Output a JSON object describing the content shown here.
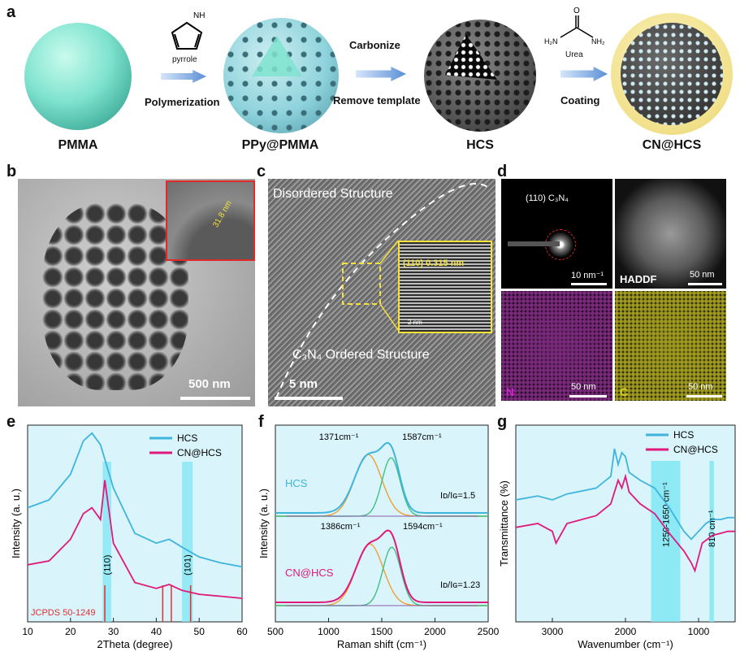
{
  "panel_labels": {
    "a": "a",
    "b": "b",
    "c": "c",
    "d": "d",
    "e": "e",
    "f": "f",
    "g": "g"
  },
  "scheme": {
    "materials": [
      "PMMA",
      "PPy@PMMA",
      "HCS",
      "CN@HCS"
    ],
    "steps": {
      "s1_top": "pyrrole",
      "s1_bottom": "Polymerization",
      "s2_top": "Carbonize",
      "s2_bottom": "Remove template",
      "s3_top": "Urea",
      "s3_bottom": "Coating"
    },
    "molecule_labels": {
      "nh": "NH",
      "h2n": "H₂N",
      "nh2": "NH₂",
      "o": "O"
    }
  },
  "tem_b": {
    "scale": "500 nm",
    "inset_label": "31.8 nm"
  },
  "hrtem_c": {
    "disordered": "Disordered Structure",
    "ordered": "C₃N₄ Ordered Structure",
    "inset": "(110) 0.315 nm",
    "scale": "5 nm",
    "inset_scale": "2 nm"
  },
  "panel_d": {
    "saed_label": "(110) C₃N₄",
    "saed_scale": "10 nm⁻¹",
    "haddf": "HADDF",
    "scale": "50 nm",
    "n": "N",
    "c": "C"
  },
  "chart_data": [
    {
      "type": "line",
      "panel": "e",
      "xlabel": "2Theta (degree)",
      "ylabel": "Intensity (a. u.)",
      "xlim": [
        10,
        60
      ],
      "xticks": [
        10,
        20,
        30,
        40,
        50,
        60
      ],
      "legend": "top-right",
      "colors": {
        "HCS": "#3fb5dd",
        "CN@HCS": "#e0197d",
        "ref": "#e03030",
        "band": "#7fe7f3"
      },
      "series": [
        {
          "name": "HCS",
          "x": [
            10,
            15,
            20,
            23,
            25,
            27,
            30,
            35,
            40,
            43,
            46,
            50,
            55,
            60
          ],
          "y": [
            0.58,
            0.62,
            0.75,
            0.92,
            0.96,
            0.9,
            0.68,
            0.45,
            0.4,
            0.42,
            0.38,
            0.33,
            0.3,
            0.28
          ]
        },
        {
          "name": "CN@HCS",
          "x": [
            10,
            15,
            20,
            23,
            25,
            27,
            28,
            30,
            35,
            40,
            43,
            46,
            50,
            55,
            60
          ],
          "y": [
            0.29,
            0.31,
            0.42,
            0.55,
            0.58,
            0.52,
            0.72,
            0.4,
            0.2,
            0.17,
            0.19,
            0.16,
            0.14,
            0.13,
            0.12
          ]
        }
      ],
      "bands": [
        {
          "from": 27.5,
          "to": 29.5,
          "label": "(110)"
        },
        {
          "from": 46,
          "to": 48.5,
          "label": "(101)"
        }
      ],
      "reference": {
        "name": "JCPDS 50-1249",
        "peaks": [
          28,
          41.5,
          43.5,
          48
        ]
      }
    },
    {
      "type": "line",
      "panel": "f",
      "xlabel": "Raman shift (cm⁻¹)",
      "ylabel": "Intensity (a. u.)",
      "xlim": [
        500,
        2500
      ],
      "xticks": [
        500,
        1000,
        1500,
        2000,
        2500
      ],
      "colors": {
        "HCS": "#3fb5dd",
        "CN@HCS": "#e0197d",
        "D": "#f0a030",
        "G": "#40c080",
        "base": "#8a5ab0"
      },
      "series": [
        {
          "name": "HCS",
          "D": 1371,
          "G": 1587,
          "ratio": "Iᴅ/Iɢ=1.5",
          "d_label": "1371cm⁻¹",
          "g_label": "1587cm⁻¹"
        },
        {
          "name": "CN@HCS",
          "D": 1386,
          "G": 1594,
          "ratio": "Iᴅ/Iɢ=1.23",
          "d_label": "1386cm⁻¹",
          "g_label": "1594cm⁻¹"
        }
      ]
    },
    {
      "type": "line",
      "panel": "g",
      "xlabel": "Wavenumber (cm⁻¹)",
      "ylabel": "Transmittance (%)",
      "xlim": [
        3500,
        500
      ],
      "xticks": [
        3000,
        2000,
        1000
      ],
      "legend": "top-right",
      "colors": {
        "HCS": "#3fb5dd",
        "CN@HCS": "#e0197d",
        "band": "#7fe7f3"
      },
      "series": [
        {
          "name": "HCS",
          "x": [
            3500,
            3200,
            3000,
            2800,
            2400,
            2200,
            2150,
            2100,
            2050,
            2000,
            1950,
            1800,
            1600,
            1400,
            1200,
            1100,
            1000,
            900,
            810,
            700,
            600,
            500
          ],
          "y": [
            0.62,
            0.64,
            0.62,
            0.65,
            0.68,
            0.74,
            0.88,
            0.8,
            0.86,
            0.84,
            0.76,
            0.72,
            0.68,
            0.58,
            0.46,
            0.42,
            0.46,
            0.5,
            0.52,
            0.52,
            0.53,
            0.53
          ]
        },
        {
          "name": "CN@HCS",
          "x": [
            3500,
            3200,
            3000,
            2950,
            2800,
            2400,
            2200,
            2100,
            2050,
            2000,
            1950,
            1800,
            1600,
            1400,
            1200,
            1100,
            1050,
            950,
            810,
            700,
            600,
            500
          ],
          "y": [
            0.48,
            0.5,
            0.46,
            0.4,
            0.5,
            0.54,
            0.6,
            0.72,
            0.68,
            0.74,
            0.66,
            0.6,
            0.55,
            0.45,
            0.36,
            0.3,
            0.26,
            0.4,
            0.44,
            0.45,
            0.46,
            0.46
          ]
        }
      ],
      "bands": [
        {
          "from": 1650,
          "to": 1250,
          "label": "1250-1650 cm⁻¹"
        },
        {
          "from": 850,
          "to": 790,
          "label": "810 cm⁻¹"
        }
      ]
    }
  ]
}
